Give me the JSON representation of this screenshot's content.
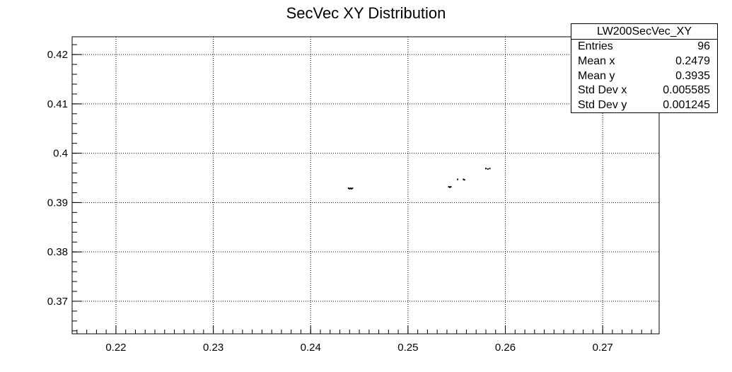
{
  "chart_data": {
    "type": "scatter",
    "title": "SecVec XY Distribution",
    "xlabel": "",
    "ylabel": "",
    "xlim": [
      0.2155,
      0.2758
    ],
    "ylim": [
      0.3634,
      0.4236
    ],
    "x_ticks": [
      "0.22",
      "0.23",
      "0.24",
      "0.25",
      "0.26",
      "0.27"
    ],
    "y_ticks": [
      "0.37",
      "0.38",
      "0.39",
      "0.4",
      "0.41",
      "0.42"
    ],
    "grid": true,
    "legend": "top-right",
    "series": [
      {
        "name": "LW200SecVec_XY",
        "points": [
          [
            0.2439,
            0.3929
          ],
          [
            0.244,
            0.3928
          ],
          [
            0.2441,
            0.3929
          ],
          [
            0.2442,
            0.3928
          ],
          [
            0.2443,
            0.3929
          ],
          [
            0.2542,
            0.3932
          ],
          [
            0.2543,
            0.3931
          ],
          [
            0.2544,
            0.3932
          ],
          [
            0.2551,
            0.3947
          ],
          [
            0.2557,
            0.3947
          ],
          [
            0.2558,
            0.3946
          ],
          [
            0.258,
            0.3969
          ],
          [
            0.2582,
            0.3968
          ],
          [
            0.2584,
            0.3969
          ]
        ]
      }
    ]
  },
  "stats": {
    "title": "LW200SecVec_XY",
    "rows": [
      {
        "label": "Entries",
        "value": "96"
      },
      {
        "label": "Mean x",
        "value": "0.2479"
      },
      {
        "label": "Mean y",
        "value": "0.3935"
      },
      {
        "label": "Std Dev x",
        "value": "0.005585"
      },
      {
        "label": "Std Dev y",
        "value": "0.001245"
      }
    ]
  },
  "colors": {
    "axis": "#000000",
    "grid": "#000000",
    "marker": "#000000"
  }
}
